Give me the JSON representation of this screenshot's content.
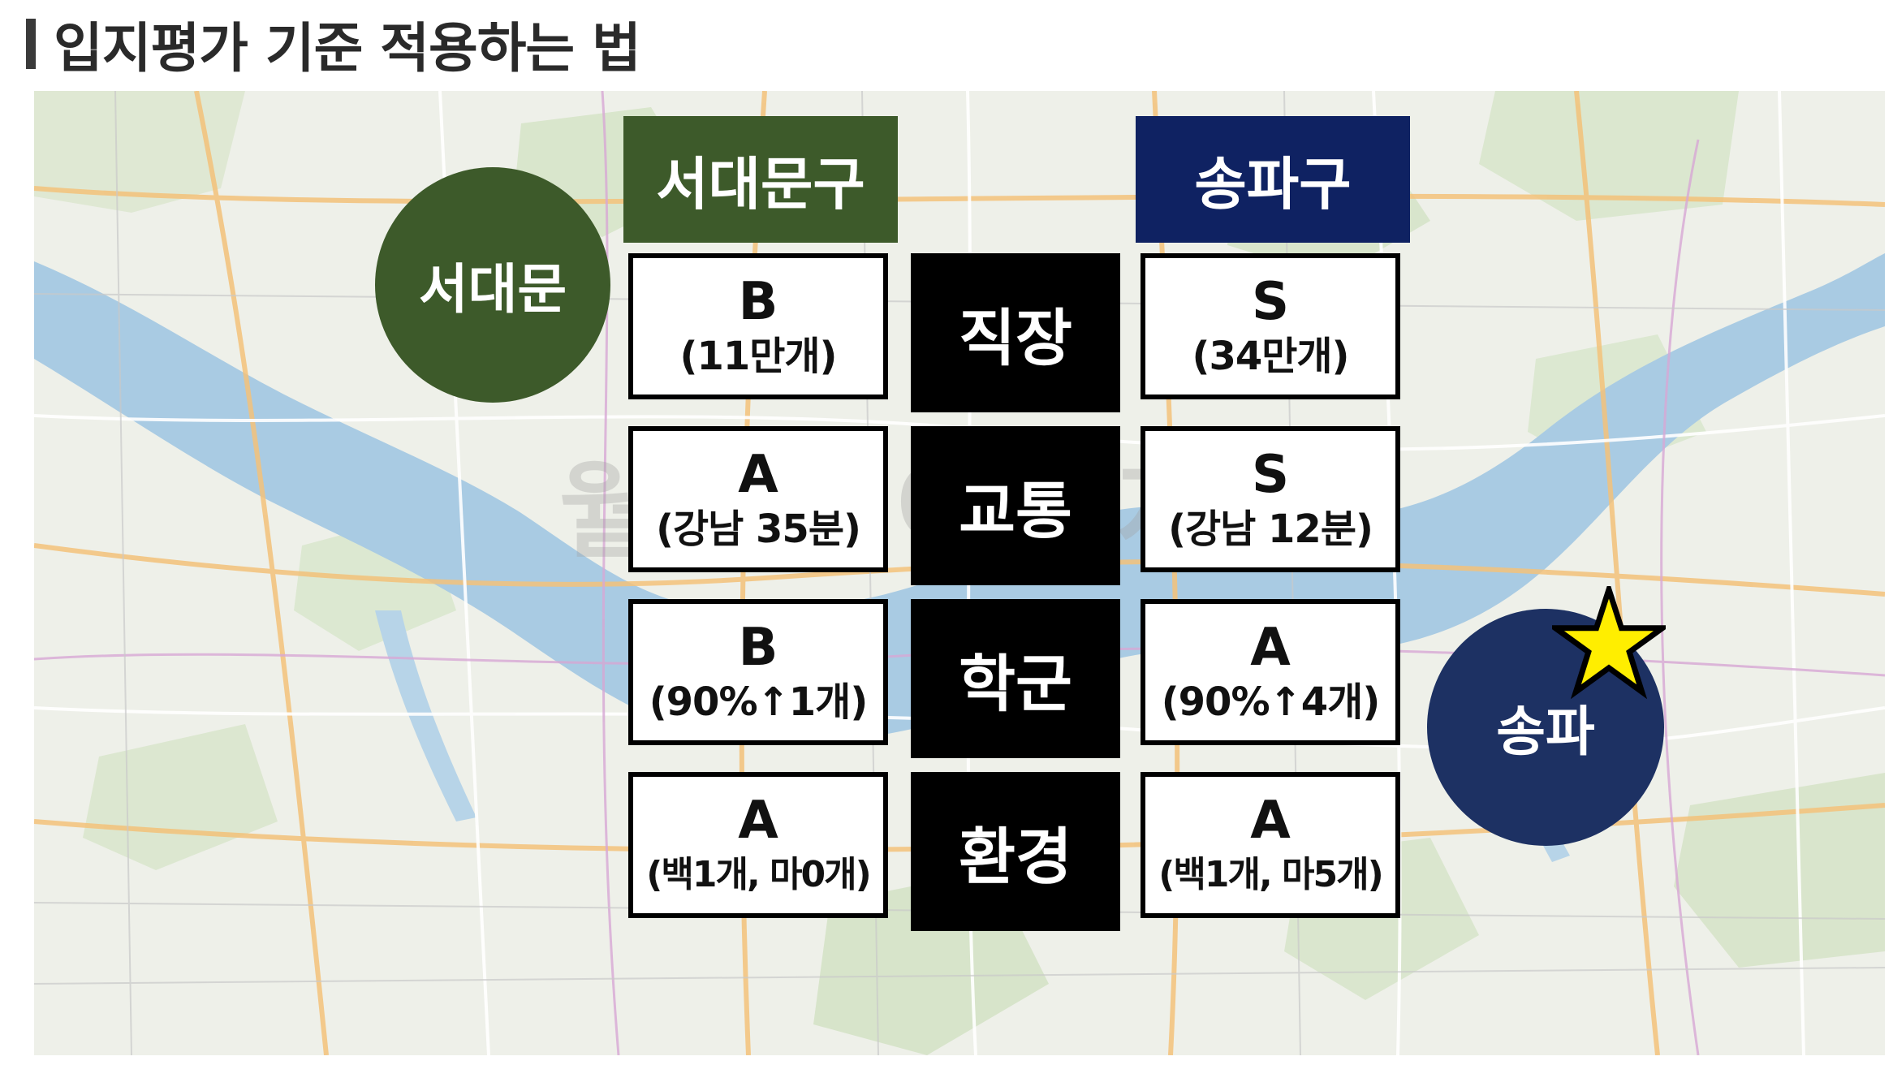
{
  "title": "입지평가 기준 적용하는 법",
  "colors": {
    "left_district": "#3d5a2a",
    "right_district": "#0f2262",
    "right_circle": "#1d3163",
    "category_bg": "#000000",
    "star": "#ffee00"
  },
  "watermark": "월급쟁이부자들",
  "left": {
    "circle_label": "서대문",
    "header": "서대문구"
  },
  "right": {
    "circle_label": "송파",
    "header": "송파구"
  },
  "rows": [
    {
      "category": "직장",
      "left": {
        "grade": "B",
        "detail": "(11만개)"
      },
      "right": {
        "grade": "S",
        "detail": "(34만개)"
      }
    },
    {
      "category": "교통",
      "left": {
        "grade": "A",
        "detail": "(강남 35분)"
      },
      "right": {
        "grade": "S",
        "detail": "(강남 12분)"
      }
    },
    {
      "category": "학군",
      "left": {
        "grade": "B",
        "detail": "(90%↑1개)"
      },
      "right": {
        "grade": "A",
        "detail": "(90%↑4개)"
      }
    },
    {
      "category": "환경",
      "left": {
        "grade": "A",
        "detail": "(백1개, 마0개)"
      },
      "right": {
        "grade": "A",
        "detail": "(백1개, 마5개)"
      }
    }
  ],
  "icons": {
    "star": "star-icon"
  }
}
